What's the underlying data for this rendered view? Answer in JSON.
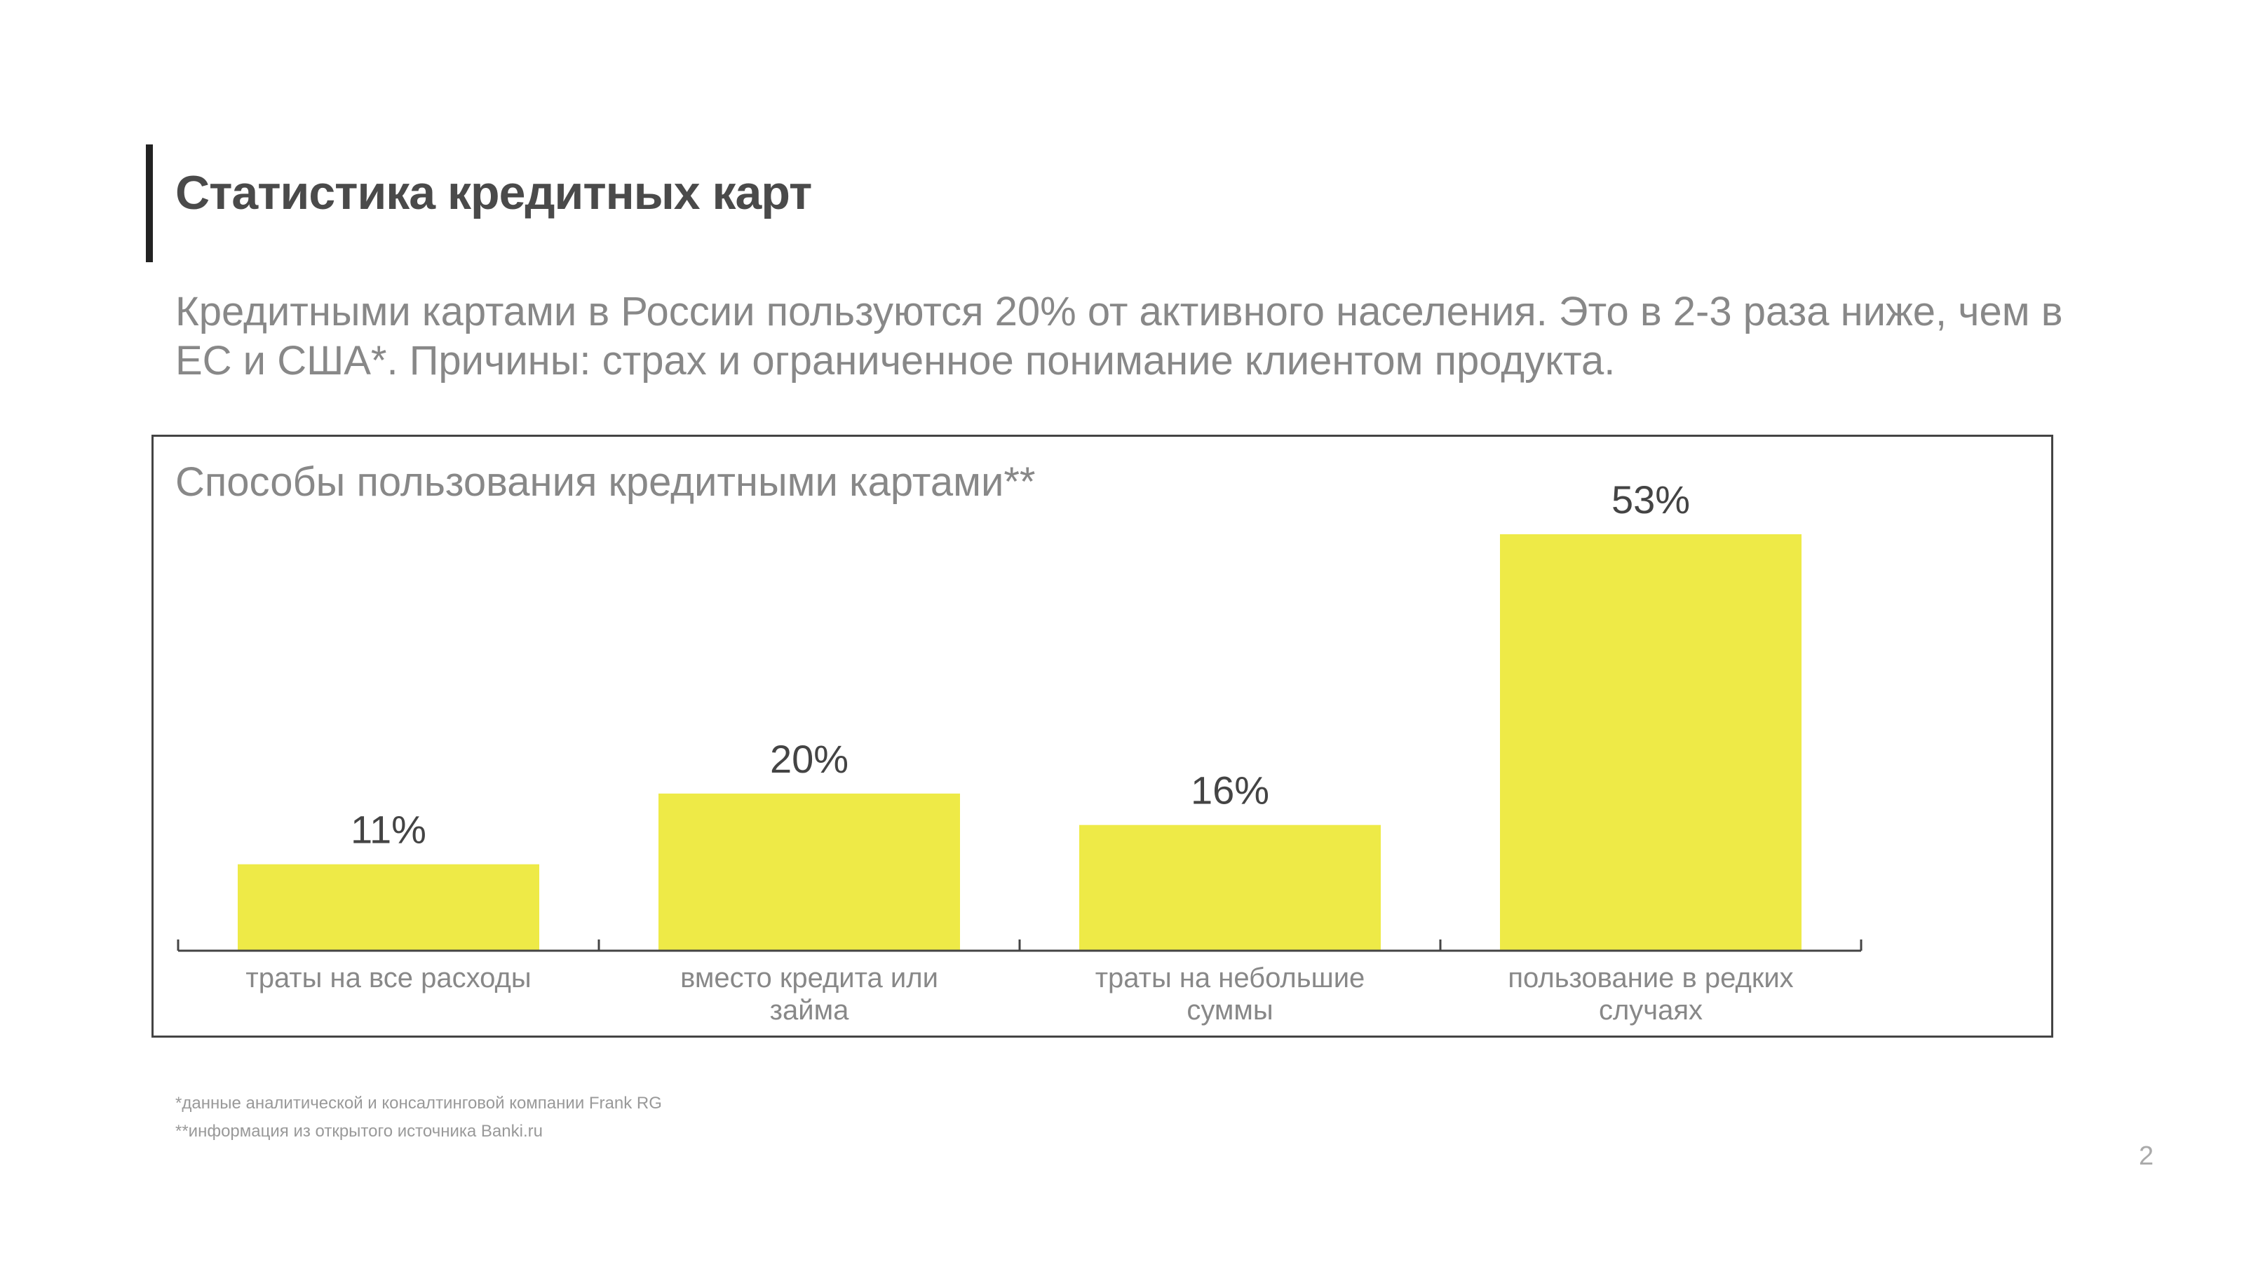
{
  "slide": {
    "title": "Статистика кредитных карт",
    "subtitle": "Кредитными картами в России пользуются 20% от активного населения. Это в 2-3 раза ниже, чем в ЕС и США*. Причины: страх и ограниченное понимание клиентом продукта.",
    "footnotes": [
      "*данные аналитической и консалтинговой компании Frank RG",
      "**информация из открытого источника Banki.ru"
    ],
    "page_number": "2"
  },
  "colors": {
    "bar": "#eeea47",
    "axis": "#444444",
    "value_label": "#444444",
    "category_label": "#888888"
  },
  "chart_data": {
    "type": "bar",
    "title": "Способы пользования кредитными картами**",
    "categories": [
      [
        "траты на все расходы"
      ],
      [
        "вместо кредита или",
        "займа"
      ],
      [
        "траты на небольшие",
        "суммы"
      ],
      [
        "пользование в редких",
        "случаях"
      ]
    ],
    "values": [
      11,
      20,
      16,
      53
    ],
    "value_labels": [
      "11%",
      "20%",
      "16%",
      "53%"
    ],
    "ylim": [
      0,
      53
    ],
    "xlabel": "",
    "ylabel": "",
    "grid": false
  }
}
